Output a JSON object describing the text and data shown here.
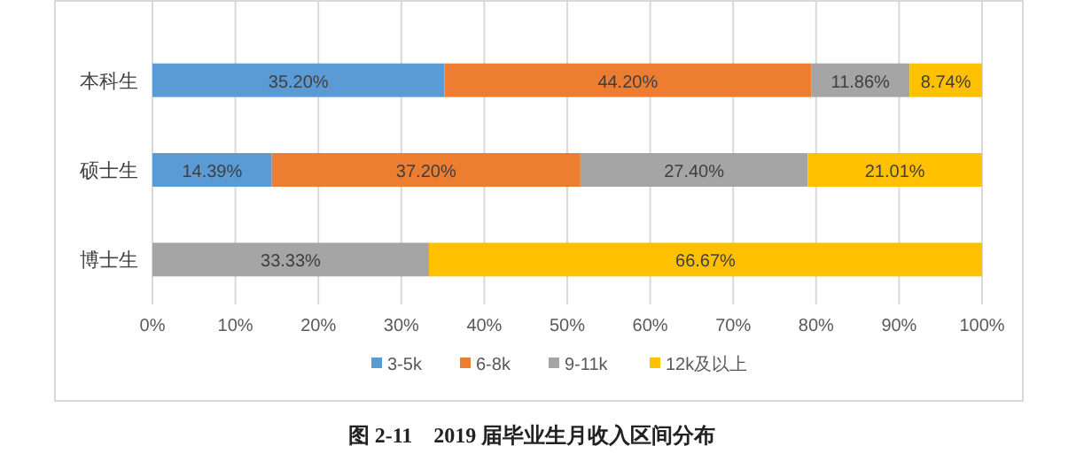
{
  "chart_data": {
    "type": "bar",
    "orientation": "horizontal",
    "stacked": true,
    "categories": [
      "本科生",
      "硕士生",
      "博士生"
    ],
    "series": [
      {
        "name": "3-5k",
        "color": "#5b9bd5",
        "values": [
          35.2,
          14.39,
          0
        ],
        "value_labels": [
          "35.20%",
          "14.39%",
          null
        ]
      },
      {
        "name": "6-8k",
        "color": "#ed7d31",
        "values": [
          44.2,
          37.2,
          0
        ],
        "value_labels": [
          "44.20%",
          "37.20%",
          null
        ]
      },
      {
        "name": "9-11k",
        "color": "#a5a5a5",
        "values": [
          11.86,
          27.4,
          33.33
        ],
        "value_labels": [
          "11.86%",
          "27.40%",
          "33.33%"
        ]
      },
      {
        "name": "12k及以上",
        "color": "#ffc000",
        "values": [
          8.74,
          21.01,
          66.67
        ],
        "value_labels": [
          "8.74%",
          "21.01%",
          "66.67%"
        ]
      }
    ],
    "xlim": [
      0,
      100
    ],
    "xticks": [
      {
        "value": 0,
        "label": "0%"
      },
      {
        "value": 10,
        "label": "10%"
      },
      {
        "value": 20,
        "label": "20%"
      },
      {
        "value": 30,
        "label": "30%"
      },
      {
        "value": 40,
        "label": "40%"
      },
      {
        "value": 50,
        "label": "50%"
      },
      {
        "value": 60,
        "label": "60%"
      },
      {
        "value": 70,
        "label": "70%"
      },
      {
        "value": 80,
        "label": "80%"
      },
      {
        "value": 90,
        "label": "90%"
      },
      {
        "value": 100,
        "label": "100%"
      }
    ],
    "grid": "x",
    "legend": "bottom",
    "annotations": [
      "图 2-11　2019 届毕业生月收入区间分布"
    ]
  }
}
